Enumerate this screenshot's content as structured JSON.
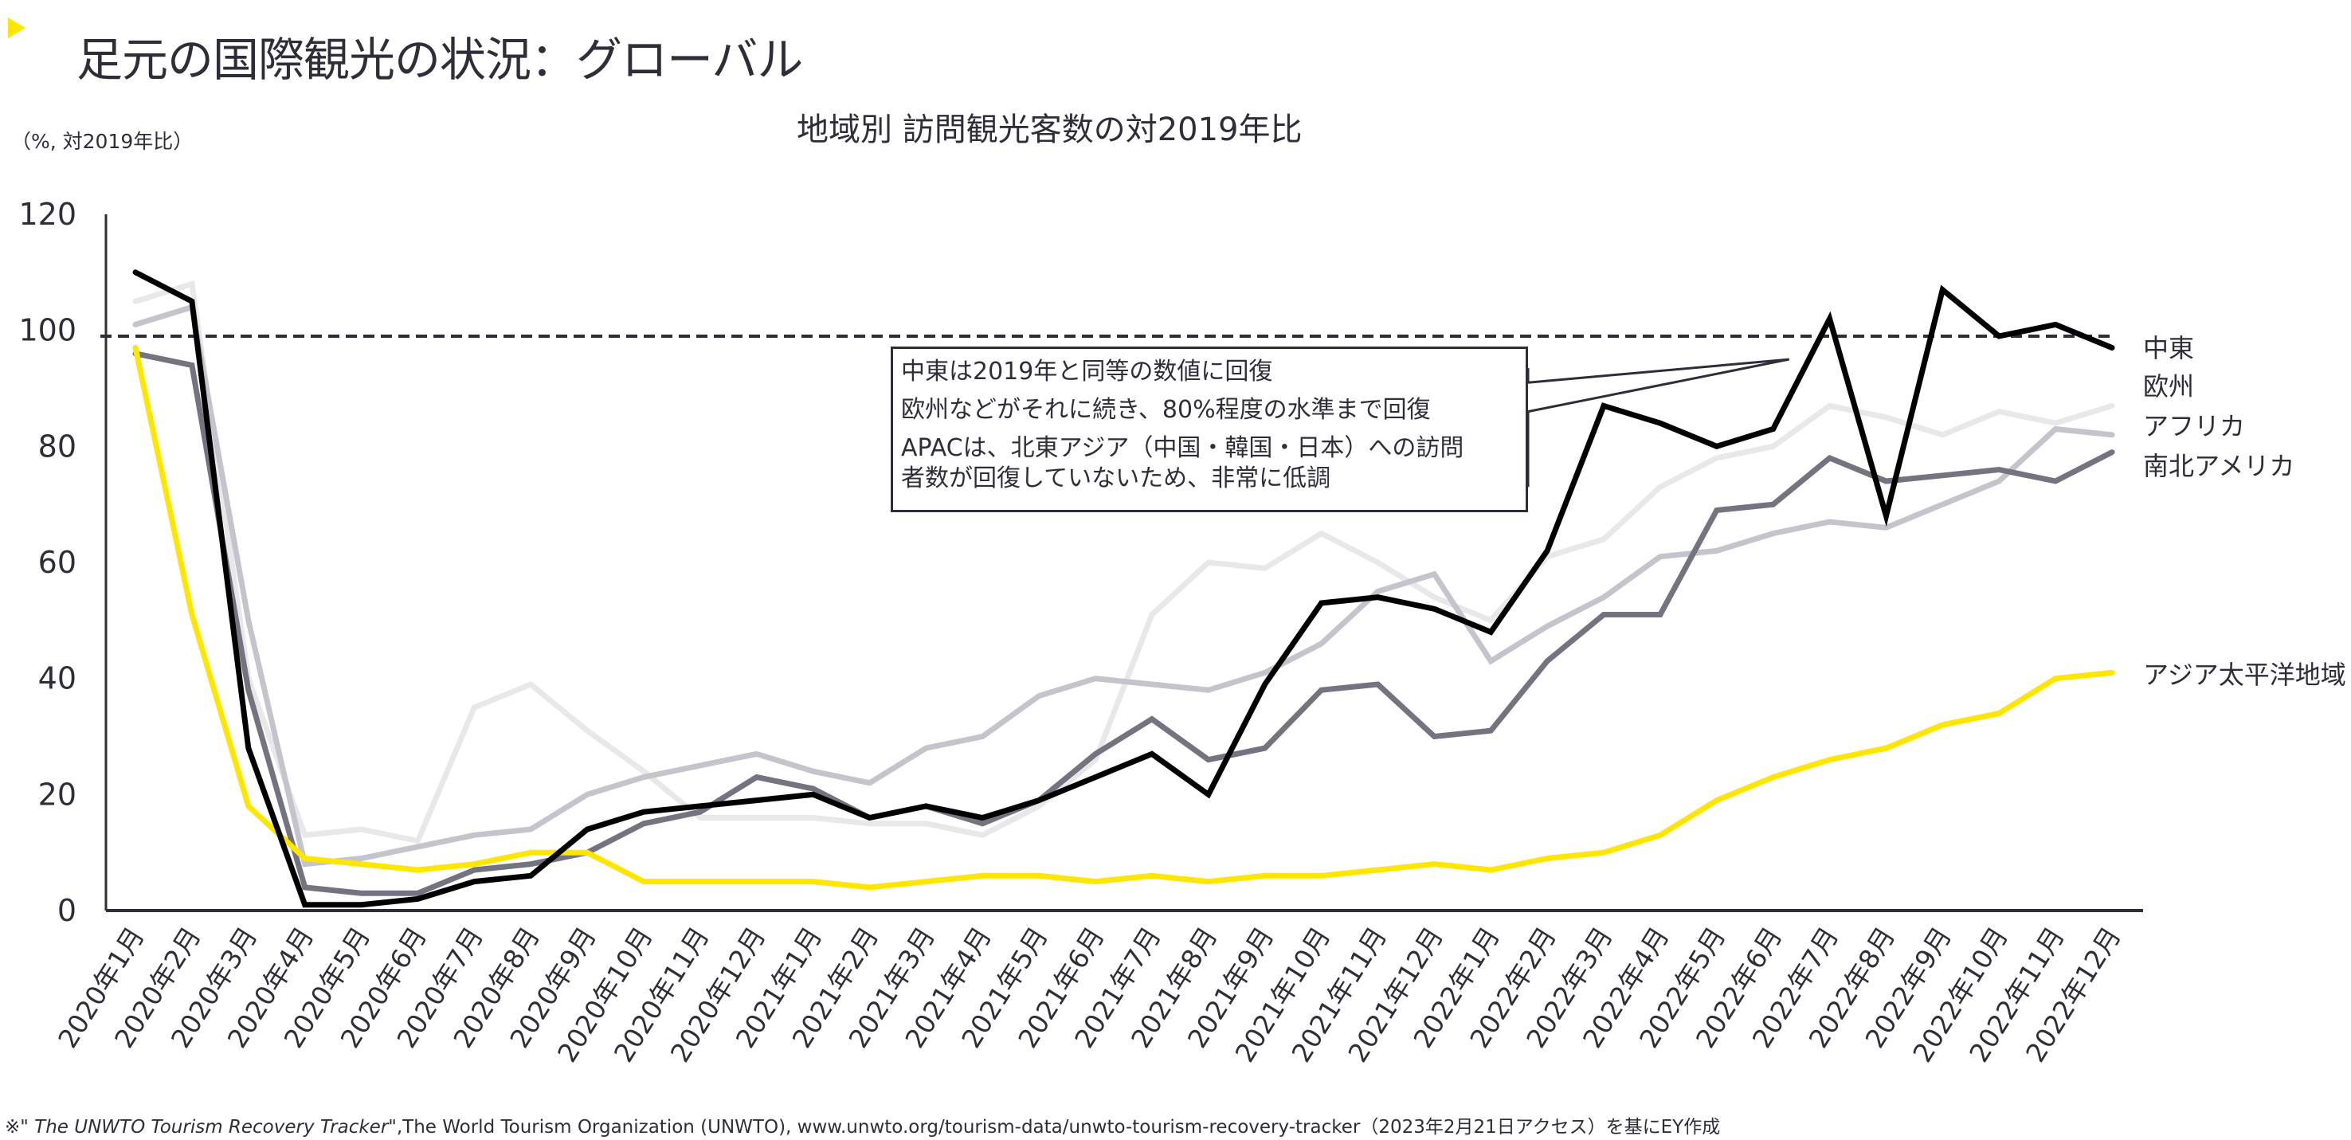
{
  "header": {
    "marker_icon": "triangle-right-icon",
    "title": "足元の国際観光の状況：グローバル"
  },
  "colors": {
    "accent_yellow": "#ffe600",
    "text_dark": "#2e2e38",
    "middle_east": "#000000",
    "europe": "#e8e8ea",
    "africa": "#c4c4cd",
    "americas": "#747480",
    "apac": "#ffe600"
  },
  "annotation": {
    "line1": "中東は2019年と同等の数値に回復",
    "line2": "欧州などがそれに続き、80%程度の水準まで回復",
    "line3": "APACは、北東アジア（中国・韓国・日本）への訪問",
    "line4": "者数が回復していないため、非常に低調"
  },
  "footer": {
    "prefix": "※\"",
    "title_italic": " The UNWTO Tourism Recovery Tracker",
    "rest": "\",The World Tourism Organization (UNWTO), www.unwto.org/tourism-data/unwto-tourism-recovery-tracker（2023年2月21日アクセス）を基にEY作成"
  },
  "chart_data": {
    "type": "line",
    "title": "地域別 訪問観光客数の対2019年比",
    "ylabel": "（%, 対2019年比）",
    "xlabel": "",
    "ylim": [
      0,
      120
    ],
    "yticks": [
      0,
      20,
      40,
      60,
      80,
      100,
      120
    ],
    "grid": false,
    "reference_line": {
      "value": 99,
      "style": "dashed"
    },
    "legend": "right (direct labels at line ends)",
    "categories": [
      "2020年1月",
      "2020年2月",
      "2020年3月",
      "2020年4月",
      "2020年5月",
      "2020年6月",
      "2020年7月",
      "2020年8月",
      "2020年9月",
      "2020年10月",
      "2020年11月",
      "2020年12月",
      "2021年1月",
      "2021年2月",
      "2021年3月",
      "2021年4月",
      "2021年5月",
      "2021年6月",
      "2021年7月",
      "2021年8月",
      "2021年9月",
      "2021年10月",
      "2021年11月",
      "2021年12月",
      "2022年1月",
      "2022年2月",
      "2022年3月",
      "2022年4月",
      "2022年5月",
      "2022年6月",
      "2022年7月",
      "2022年8月",
      "2022年9月",
      "2022年10月",
      "2022年11月",
      "2022年12月"
    ],
    "series": [
      {
        "name": "欧州",
        "color": "#e8e8ea",
        "values": [
          105,
          108,
          40,
          13,
          14,
          12,
          35,
          39,
          31,
          24,
          16,
          16,
          16,
          15,
          15,
          13,
          18,
          26,
          51,
          60,
          59,
          65,
          60,
          54,
          50,
          61,
          64,
          73,
          78,
          80,
          87,
          85,
          82,
          86,
          84,
          87
        ]
      },
      {
        "name": "アフリカ",
        "color": "#c4c4cd",
        "values": [
          101,
          104,
          50,
          8,
          9,
          11,
          13,
          14,
          20,
          23,
          25,
          27,
          24,
          22,
          28,
          30,
          37,
          40,
          39,
          38,
          41,
          46,
          55,
          58,
          43,
          49,
          54,
          61,
          62,
          65,
          67,
          66,
          70,
          74,
          83,
          82
        ]
      },
      {
        "name": "南北アメリカ",
        "color": "#747480",
        "values": [
          96,
          94,
          38,
          4,
          3,
          3,
          7,
          8,
          10,
          15,
          17,
          23,
          21,
          16,
          18,
          15,
          19,
          27,
          33,
          26,
          28,
          38,
          39,
          30,
          31,
          43,
          51,
          51,
          69,
          70,
          78,
          74,
          75,
          76,
          74,
          79
        ]
      },
      {
        "name": "アジア太平洋地域",
        "color": "#ffe600",
        "values": [
          97,
          51,
          18,
          9,
          8,
          7,
          8,
          10,
          10,
          5,
          5,
          5,
          5,
          4,
          5,
          6,
          6,
          5,
          6,
          5,
          6,
          6,
          7,
          8,
          7,
          9,
          10,
          13,
          19,
          23,
          26,
          28,
          32,
          34,
          40,
          41
        ]
      },
      {
        "name": "中東",
        "color": "#000000",
        "values": [
          110,
          105,
          28,
          1,
          1,
          2,
          5,
          6,
          14,
          17,
          18,
          19,
          20,
          16,
          18,
          16,
          19,
          23,
          27,
          20,
          39,
          53,
          54,
          52,
          48,
          62,
          87,
          84,
          80,
          83,
          102,
          68,
          107,
          99,
          101,
          97
        ]
      }
    ],
    "end_labels_order": [
      "中東",
      "欧州",
      "アフリカ",
      "南北アメリカ",
      "アジア太平洋地域"
    ]
  }
}
